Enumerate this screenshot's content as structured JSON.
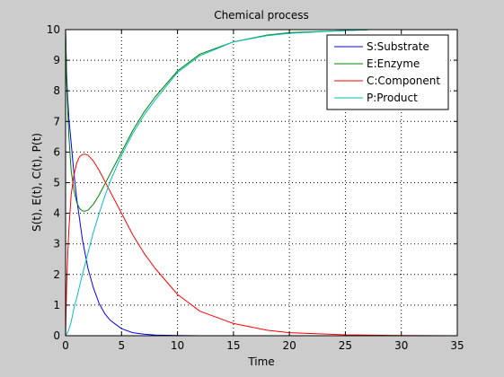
{
  "chart_data": {
    "type": "line",
    "title": "Chemical process",
    "xlabel": "Time",
    "ylabel": "S(t), E(t), C(t), P(t)",
    "xlim": [
      0,
      35
    ],
    "ylim": [
      0,
      10
    ],
    "xticks": [
      0,
      5,
      10,
      15,
      20,
      25,
      30,
      35
    ],
    "yticks": [
      0,
      1,
      2,
      3,
      4,
      5,
      6,
      7,
      8,
      9,
      10
    ],
    "grid": true,
    "legend_position": "top-right",
    "series": [
      {
        "name": "S:Substrate",
        "color": "#0000ff",
        "x": [
          0,
          0.1,
          0.2,
          0.3,
          0.5,
          0.75,
          1.0,
          1.5,
          2.0,
          2.5,
          3.0,
          3.5,
          4.0,
          5.0,
          6.0,
          7.0,
          8.0,
          10.0,
          12.0,
          15.0,
          20.0,
          25.0,
          27.0
        ],
        "y": [
          10,
          8.5,
          7.7,
          7.1,
          6.3,
          5.3,
          4.45,
          3.15,
          2.2,
          1.55,
          1.05,
          0.72,
          0.5,
          0.23,
          0.1,
          0.05,
          0.02,
          0.005,
          0.0,
          0.0,
          0.0,
          0.0,
          0.0
        ]
      },
      {
        "name": "E:Enzyme",
        "color": "#008000",
        "x": [
          0,
          0.1,
          0.2,
          0.3,
          0.5,
          0.75,
          1.0,
          1.25,
          1.5,
          1.75,
          2.0,
          2.5,
          3.0,
          3.5,
          4.0,
          5.0,
          6.0,
          7.0,
          8.0,
          10.0,
          12.0,
          15.0,
          18.0,
          20.0,
          25.0,
          27.0
        ],
        "y": [
          10,
          8.3,
          7.3,
          6.5,
          5.4,
          4.75,
          4.35,
          4.15,
          4.08,
          4.07,
          4.1,
          4.3,
          4.6,
          4.95,
          5.3,
          6.0,
          6.7,
          7.3,
          7.8,
          8.65,
          9.2,
          9.6,
          9.82,
          9.9,
          9.97,
          9.99
        ]
      },
      {
        "name": "C:Component",
        "color": "#ff0000",
        "x": [
          0,
          0.1,
          0.2,
          0.3,
          0.5,
          0.75,
          1.0,
          1.25,
          1.5,
          1.75,
          2.0,
          2.5,
          3.0,
          3.5,
          4.0,
          5.0,
          6.0,
          7.0,
          8.0,
          10.0,
          12.0,
          15.0,
          18.0,
          20.0,
          25.0,
          30.0,
          35.0
        ],
        "y": [
          0,
          1.7,
          2.7,
          3.5,
          4.6,
          5.25,
          5.65,
          5.85,
          5.92,
          5.93,
          5.9,
          5.7,
          5.4,
          5.05,
          4.7,
          4.0,
          3.3,
          2.7,
          2.2,
          1.35,
          0.8,
          0.4,
          0.18,
          0.1,
          0.03,
          0.01,
          0.0
        ]
      },
      {
        "name": "P:Product",
        "color": "#00bfbf",
        "x": [
          0,
          0.25,
          0.5,
          0.75,
          1.0,
          1.5,
          2.0,
          2.5,
          3.0,
          3.5,
          4.0,
          5.0,
          6.0,
          7.0,
          8.0,
          10.0,
          12.0,
          15.0,
          18.0,
          20.0,
          25.0,
          27.0
        ],
        "y": [
          0,
          0.15,
          0.45,
          0.9,
          1.25,
          2.0,
          2.7,
          3.4,
          4.0,
          4.55,
          5.05,
          5.9,
          6.6,
          7.2,
          7.7,
          8.6,
          9.15,
          9.6,
          9.8,
          9.88,
          9.97,
          9.99
        ]
      }
    ]
  }
}
